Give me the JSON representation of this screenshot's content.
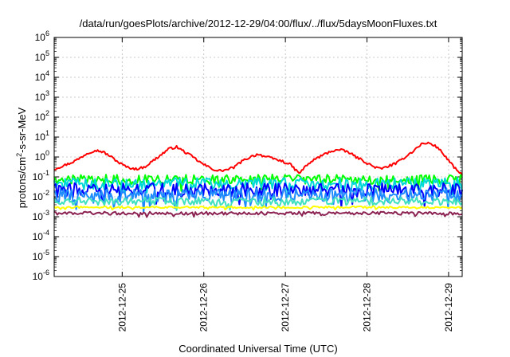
{
  "chart_data": {
    "type": "line",
    "title": "/data/run/goesPlots/archive/2012-12-29/04:00/flux/../flux/5daysMoonFluxes.txt",
    "xlabel": "Coordinated Universal Time (UTC)",
    "ylabel": "protons/cm²-s-sr-MeV",
    "ylabel_parts": {
      "pre": "protons/cm",
      "sup": "2",
      "post": "-s-sr-MeV"
    },
    "yscale": "log",
    "ylim_exponents": [
      -6,
      6
    ],
    "ytick_labels": [
      {
        "exp": "-6",
        "value": 1e-06
      },
      {
        "exp": "-5",
        "value": 1e-05
      },
      {
        "exp": "-4",
        "value": 0.0001
      },
      {
        "exp": "-3",
        "value": 0.001
      },
      {
        "exp": "-2",
        "value": 0.01
      },
      {
        "exp": "-1",
        "value": 0.1
      },
      {
        "exp": "0",
        "value": 1
      },
      {
        "exp": "1",
        "value": 10
      },
      {
        "exp": "2",
        "value": 100
      },
      {
        "exp": "3",
        "value": 1000
      },
      {
        "exp": "4",
        "value": 10000
      },
      {
        "exp": "5",
        "value": 100000
      },
      {
        "exp": "6",
        "value": 1000000
      }
    ],
    "xlim": [
      "2012-12-24 04:00",
      "2012-12-29 04:00"
    ],
    "xtick_labels": [
      "2012-12-25",
      "2012-12-26",
      "2012-12-27",
      "2012-12-28",
      "2012-12-29"
    ],
    "grid": true,
    "series": [
      {
        "color": "#ff0000",
        "x_days": [
          0,
          0.1,
          0.2,
          0.3,
          0.4,
          0.5,
          0.6,
          0.7,
          0.8,
          0.9,
          1.0,
          1.1,
          1.2,
          1.3,
          1.4,
          1.5,
          1.6,
          1.7,
          1.8,
          1.9,
          2.0,
          2.1,
          2.2,
          2.3,
          2.4,
          2.5,
          2.6,
          2.7,
          2.8,
          2.9,
          3.0,
          3.1,
          3.2,
          3.3,
          3.4,
          3.5,
          3.6,
          3.7,
          3.8,
          3.9,
          4.0,
          4.1,
          4.2,
          4.3,
          4.4,
          4.5,
          4.6,
          4.7,
          4.8,
          4.9,
          5.0
        ],
        "values": [
          0.25,
          0.35,
          0.5,
          0.8,
          1.5,
          2.2,
          1.8,
          1.0,
          0.5,
          0.3,
          0.25,
          0.3,
          0.6,
          1.2,
          2.5,
          3.2,
          1.8,
          1.0,
          0.5,
          0.3,
          0.2,
          0.22,
          0.3,
          0.6,
          1.0,
          1.4,
          1.0,
          0.8,
          0.6,
          0.4,
          0.15,
          0.4,
          0.8,
          1.3,
          2.0,
          2.3,
          1.8,
          1.0,
          0.6,
          0.35,
          0.25,
          0.35,
          0.5,
          1.0,
          2.0,
          4.5,
          5.0,
          3.0,
          1.0,
          0.3,
          0.12
        ]
      },
      {
        "color": "#00ff00",
        "level": 0.075,
        "amplitude": 0.25
      },
      {
        "color": "#00d8d8",
        "level": 0.045,
        "amplitude": 0.3
      },
      {
        "color": "#0000ff",
        "level": 0.022,
        "amplitude": 0.35
      },
      {
        "color": "#1e8cff",
        "level": 0.012,
        "amplitude": 0.35
      },
      {
        "color": "#40e0c0",
        "level": 0.006,
        "amplitude": 0.2
      },
      {
        "color": "#ffff00",
        "level": 0.003,
        "amplitude": 0.05
      },
      {
        "color": "#8b2252",
        "level": 0.0015,
        "amplitude": 0.08
      }
    ]
  }
}
